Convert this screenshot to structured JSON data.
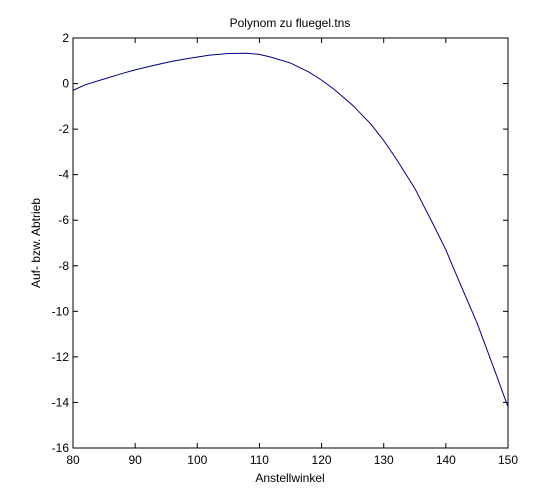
{
  "chart_data": {
    "type": "line",
    "title": "Polynom zu fluegel.tns",
    "xlabel": "Anstellwinkel",
    "ylabel": "Auf- bzw. Abtrieb",
    "xlim": [
      80,
      150
    ],
    "ylim": [
      -16,
      2
    ],
    "xticks": [
      80,
      90,
      100,
      110,
      120,
      130,
      140,
      150
    ],
    "yticks": [
      -16,
      -14,
      -12,
      -10,
      -8,
      -6,
      -4,
      -2,
      0,
      2
    ],
    "grid": false,
    "line_color": "#000080",
    "series": [
      {
        "x": [
          80,
          82,
          85,
          88,
          90,
          93,
          96,
          99,
          102,
          105,
          108,
          110,
          112,
          115,
          118,
          120,
          122,
          125,
          128,
          130,
          132,
          135,
          138,
          140,
          142,
          145,
          148,
          150
        ],
        "y": [
          -0.3,
          -0.05,
          0.2,
          0.45,
          0.6,
          0.8,
          0.98,
          1.12,
          1.25,
          1.32,
          1.33,
          1.28,
          1.15,
          0.9,
          0.5,
          0.15,
          -0.25,
          -0.95,
          -1.8,
          -2.5,
          -3.3,
          -4.6,
          -6.2,
          -7.3,
          -8.6,
          -10.5,
          -12.7,
          -14.2
        ]
      }
    ]
  }
}
